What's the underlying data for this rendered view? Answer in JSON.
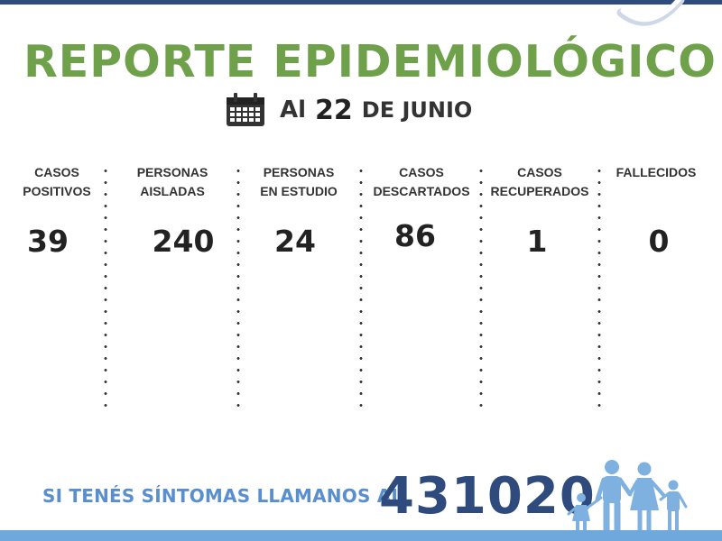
{
  "header": {
    "title": "REPORTE EPIDEMIOLÓGICO",
    "date_prefix": "Al",
    "date_day": "22",
    "date_month": "DE JUNIO"
  },
  "stats": [
    {
      "label": "CASOS\nPOSITIVOS",
      "value": "39"
    },
    {
      "label": "PERSONAS\nAISLADAS",
      "value": "240"
    },
    {
      "label": "PERSONAS\nEN ESTUDIO",
      "value": "24"
    },
    {
      "label": "CASOS\nDESCARTADOS",
      "value": "86"
    },
    {
      "label": "CASOS\nRECUPERADOS",
      "value": "1"
    },
    {
      "label": "FALLECIDOS",
      "value": "0"
    }
  ],
  "footer": {
    "cta": "SI TENÉS SÍNTOMAS LLAMANOS AL",
    "phone": "431020"
  },
  "colors": {
    "title_green": "#6fa14b",
    "navy": "#2f4a7c",
    "light_blue": "#5a8fcf",
    "bar_blue": "#6fa8dc",
    "family_blue": "#7fb1e0"
  },
  "icons": [
    "calendar-icon",
    "family-icon"
  ]
}
